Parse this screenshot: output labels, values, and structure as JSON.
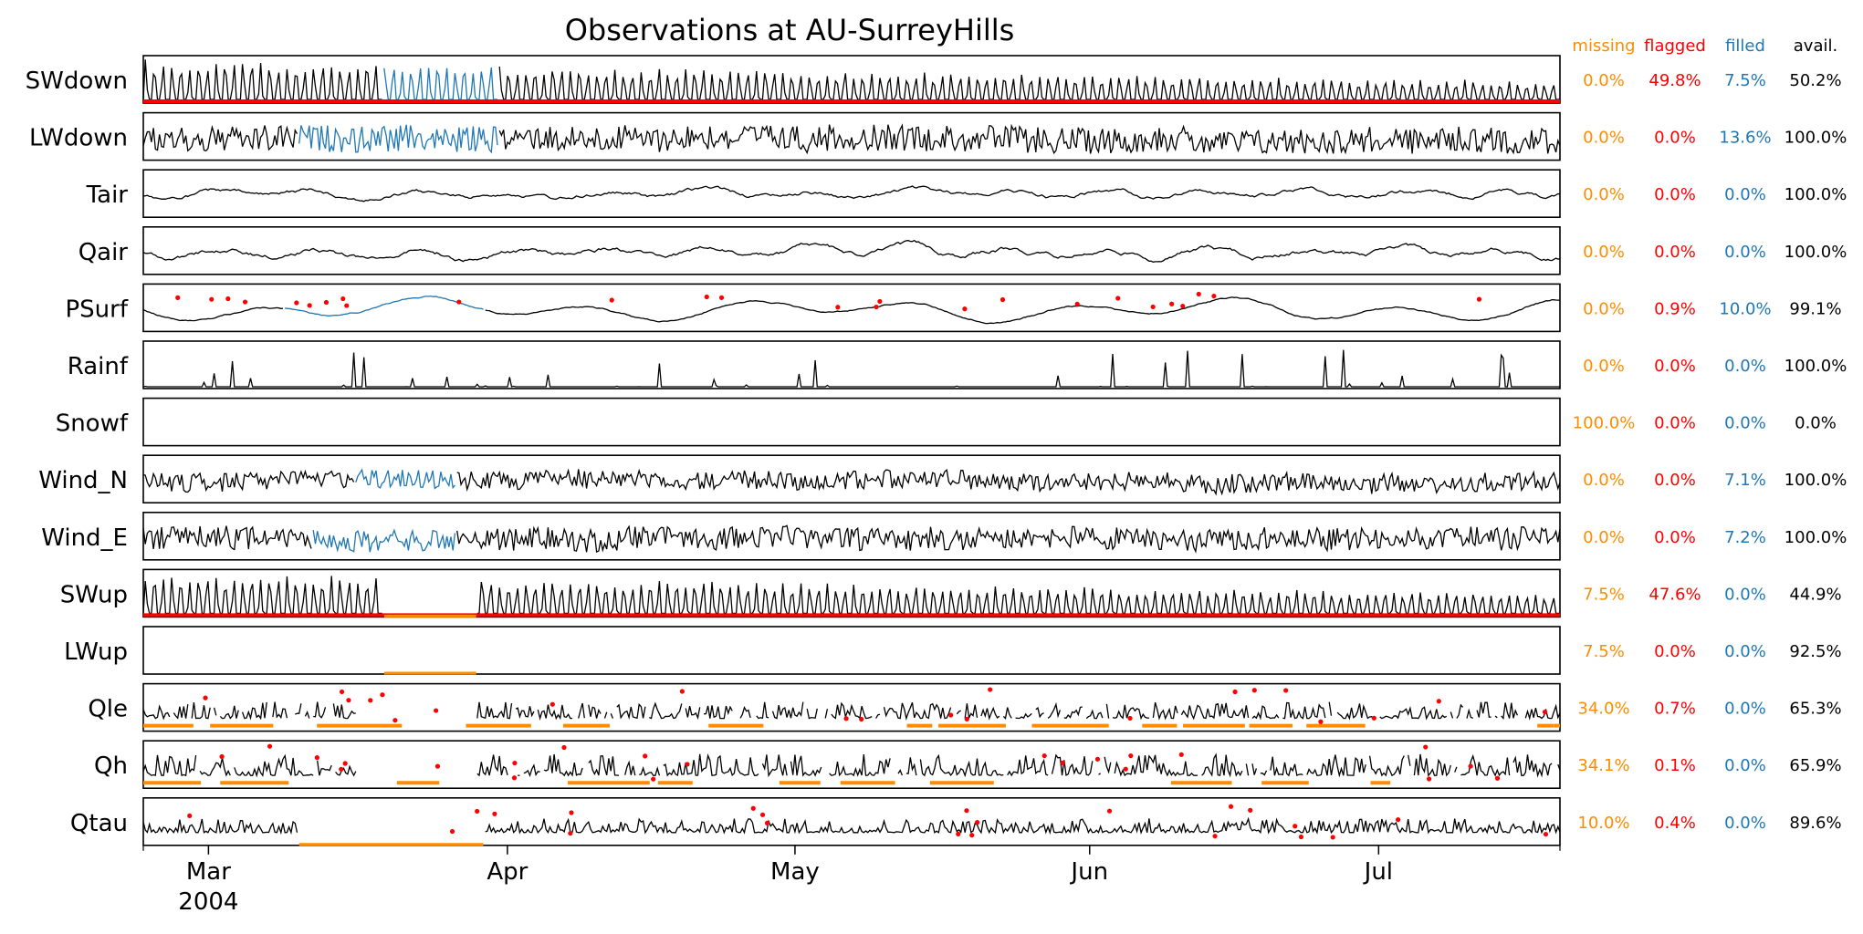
{
  "title": "Observations at AU-SurreyHills",
  "columns": {
    "missing": "missing",
    "flagged": "flagged",
    "filled": "filled",
    "avail": "avail."
  },
  "colors": {
    "missing": "#ff8c00",
    "flagged": "#ff0000",
    "filled": "#1f77b4",
    "avail": "#000000",
    "line": "#000000"
  },
  "chart_data": {
    "type": "line",
    "title": "Observations at AU-SurreyHills",
    "x_ticks": [
      "Mar",
      "Apr",
      "May",
      "Jun",
      "Jul"
    ],
    "x_tick_sublabel": "2004",
    "legend_placement": "right-column table",
    "grid": false,
    "series": [
      {
        "name": "SWdown",
        "missing": "0.0%",
        "flagged": "49.8%",
        "filled": "7.5%",
        "avail": "50.2%"
      },
      {
        "name": "LWdown",
        "missing": "0.0%",
        "flagged": "0.0%",
        "filled": "13.6%",
        "avail": "100.0%"
      },
      {
        "name": "Tair",
        "missing": "0.0%",
        "flagged": "0.0%",
        "filled": "0.0%",
        "avail": "100.0%"
      },
      {
        "name": "Qair",
        "missing": "0.0%",
        "flagged": "0.0%",
        "filled": "0.0%",
        "avail": "100.0%"
      },
      {
        "name": "PSurf",
        "missing": "0.0%",
        "flagged": "0.9%",
        "filled": "10.0%",
        "avail": "99.1%"
      },
      {
        "name": "Rainf",
        "missing": "0.0%",
        "flagged": "0.0%",
        "filled": "0.0%",
        "avail": "100.0%"
      },
      {
        "name": "Snowf",
        "missing": "100.0%",
        "flagged": "0.0%",
        "filled": "0.0%",
        "avail": "0.0%"
      },
      {
        "name": "Wind_N",
        "missing": "0.0%",
        "flagged": "0.0%",
        "filled": "7.1%",
        "avail": "100.0%"
      },
      {
        "name": "Wind_E",
        "missing": "0.0%",
        "flagged": "0.0%",
        "filled": "7.2%",
        "avail": "100.0%"
      },
      {
        "name": "SWup",
        "missing": "7.5%",
        "flagged": "47.6%",
        "filled": "0.0%",
        "avail": "44.9%"
      },
      {
        "name": "LWup",
        "missing": "7.5%",
        "flagged": "0.0%",
        "filled": "0.0%",
        "avail": "92.5%"
      },
      {
        "name": "Qle",
        "missing": "34.0%",
        "flagged": "0.7%",
        "filled": "0.0%",
        "avail": "65.3%"
      },
      {
        "name": "Qh",
        "missing": "34.1%",
        "flagged": "0.1%",
        "filled": "0.0%",
        "avail": "65.9%"
      },
      {
        "name": "Qtau",
        "missing": "10.0%",
        "flagged": "0.4%",
        "filled": "0.0%",
        "avail": "89.6%"
      }
    ]
  }
}
